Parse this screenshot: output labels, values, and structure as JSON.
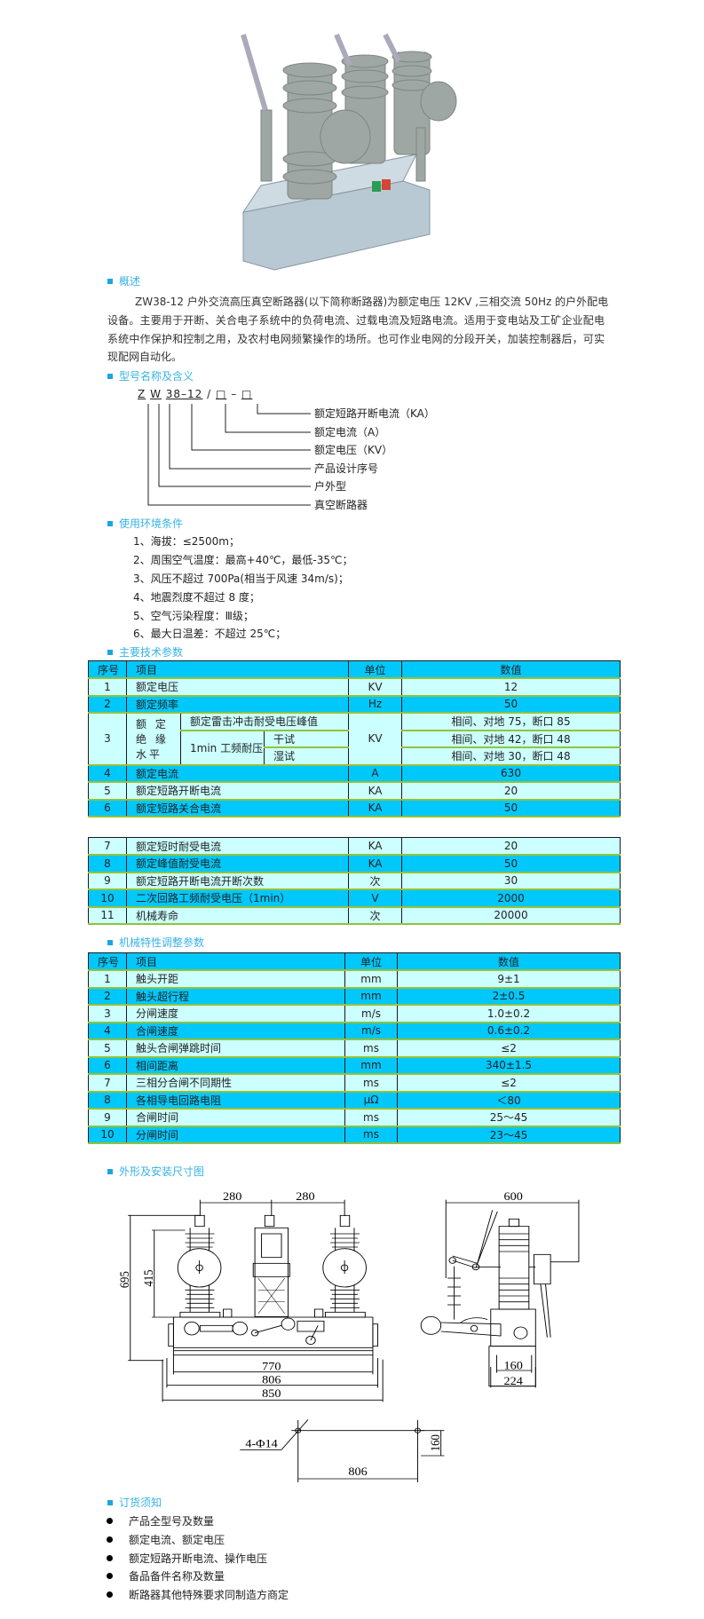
{
  "sections": {
    "overview": "概述",
    "model": "型号名称及含义",
    "environment": "使用环境条件",
    "tech": "主要技术参数",
    "mech": "机械特性调整参数",
    "dimensions": "外形及安装尺寸图",
    "order": "订货须知"
  },
  "overview_lines": [
    "ZW38-12 户外交流高压真空断路器(以下简称断路器)为额定电压 12KV ,三相交流 50Hz 的户外配电",
    "设备。主要用于开断、关合电子系统中的负荷电流、过载电流及短路电流。适用于变电站及工矿企业配电",
    "系统中作保护和控制之用，及农村电网频繁操作的场所。也可作业电网的分段开关，加装控制器后，可实",
    "现配网自动化。"
  ],
  "model_code": {
    "parts": [
      "Z",
      "W",
      "38–12",
      "/",
      "□",
      "–",
      "□"
    ],
    "labels": [
      "额定短路开断电流（KA）",
      "额定电流（A）",
      "额定电压（KV）",
      "产品设计序号",
      "户外型",
      "真空断路器"
    ]
  },
  "environment_items": [
    "1、海拔：≤2500m；",
    "2、周围空气温度：最高+40℃，最低-35℃；",
    "3、风压不超过 700Pa(相当于风速 34m/s)；",
    "4、地震烈度不超过 8 度；",
    "5、空气污染程度：Ⅲ级；",
    "6、最大日温差：不超过 25℃；"
  ],
  "tech_table": {
    "headers": [
      "序号",
      "项目",
      "单位",
      "数值"
    ],
    "rows_a": [
      [
        "1",
        "额定电压",
        "KV",
        "12"
      ],
      [
        "2",
        "额定频率",
        "Hz",
        "50"
      ]
    ],
    "row3": {
      "no": "3",
      "group": "额 定 绝 缘水平",
      "lightning": "额定雷击冲击耐受电压峰值",
      "power_freq": "1min 工频耐压",
      "dry": "干试",
      "wet": "湿试",
      "unit": "KV",
      "values": [
        "相间、对地 75，断口 85",
        "相间、对地 42，断口 48",
        "相间、对地 30，断口 48"
      ]
    },
    "rows_b": [
      [
        "4",
        "额定电流",
        "A",
        "630"
      ],
      [
        "5",
        "额定短路开断电流",
        "KA",
        "20"
      ],
      [
        "6",
        "额定短路关合电流",
        "KA",
        "50"
      ]
    ],
    "rows_c": [
      [
        "7",
        "额定短时耐受电流",
        "KA",
        "20"
      ],
      [
        "8",
        "额定峰值耐受电流",
        "KA",
        "50"
      ],
      [
        "9",
        "额定短路开断电流开断次数",
        "次",
        "30"
      ],
      [
        "10",
        "二次回路工频耐受电压（1min）",
        "V",
        "2000"
      ],
      [
        "11",
        "机械寿命",
        "次",
        "20000"
      ]
    ]
  },
  "mech_table": {
    "headers": [
      "序号",
      "项目",
      "单位",
      "数值"
    ],
    "rows": [
      [
        "1",
        "触头开距",
        "mm",
        "9±1"
      ],
      [
        "2",
        "触头超行程",
        "mm",
        "2±0.5"
      ],
      [
        "3",
        "分闸速度",
        "m/s",
        "1.0±0.2"
      ],
      [
        "4",
        "合闸速度",
        "m/s",
        "0.6±0.2"
      ],
      [
        "5",
        "触头合闸弹跳时间",
        "ms",
        "≤2"
      ],
      [
        "6",
        "相间距离",
        "mm",
        "340±1.5"
      ],
      [
        "7",
        "三相分合闸不同期性",
        "ms",
        "≤2"
      ],
      [
        "8",
        "各相导电回路电阻",
        "μΩ",
        "＜80"
      ],
      [
        "9",
        "合闸时间",
        "ms",
        "25～45"
      ],
      [
        "10",
        "分闸时间",
        "ms",
        "23～45"
      ]
    ]
  },
  "drawing": {
    "pitch_left": "280",
    "pitch_right": "280",
    "side_width": "600",
    "total_height": "695",
    "pole_height": "415",
    "w770": "770",
    "w806": "806",
    "w850": "850",
    "side_160": "160",
    "side_224": "224",
    "holes": "4-Φ14",
    "hole_160": "160",
    "hole_806": "806"
  },
  "order_items": [
    "产品全型号及数量",
    "额定电流、额定电压",
    "额定短路开断电流、操作电压",
    "备品备件名称及数量",
    "断路器其他特殊要求同制造方商定"
  ],
  "colors": {
    "header_row": "#00c8fa",
    "light_row": "#ccffff",
    "heading": "#36b3e6"
  }
}
